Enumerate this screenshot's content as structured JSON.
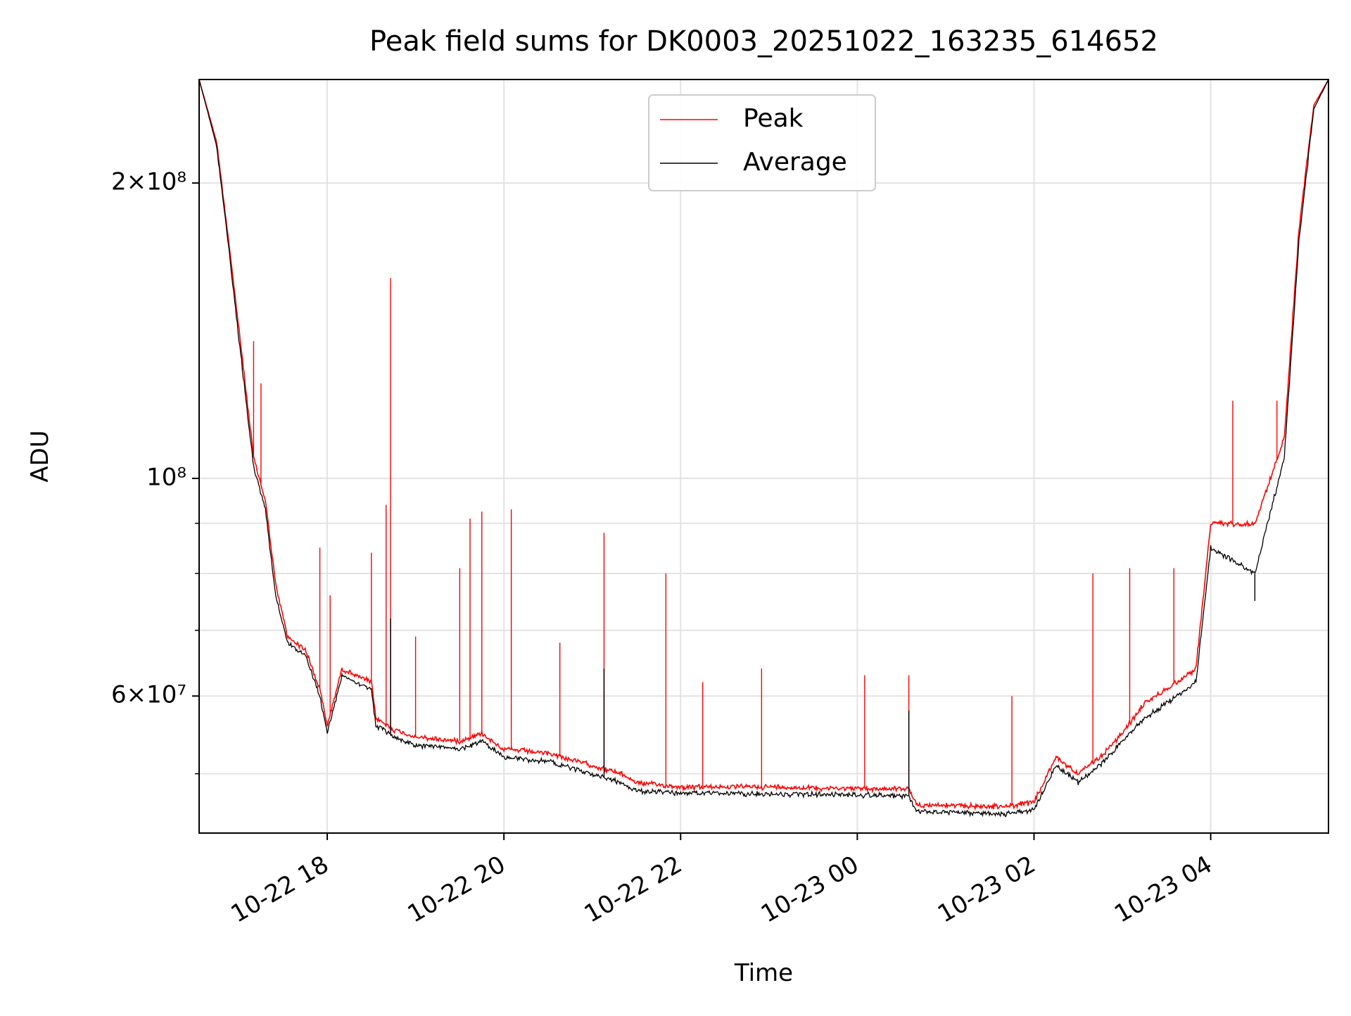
{
  "chart_data": {
    "type": "line",
    "title": "Peak field sums for DK0003_20251022_163235_614652",
    "xlabel": "Time",
    "ylabel": "ADU",
    "yscale": "log",
    "xlim": [
      "2025-10-22 16:33",
      "2025-10-23 05:20"
    ],
    "ylim": [
      43500000,
      255000000
    ],
    "x_ticks": [
      "10-22 18",
      "10-22 20",
      "10-22 22",
      "10-23 00",
      "10-23 02",
      "10-23 04"
    ],
    "y_ticks": [
      {
        "value": 200000000,
        "label": "2×10⁸"
      },
      {
        "value": 100000000,
        "label": "10⁸"
      },
      {
        "value": 60000000,
        "label": "6×10⁷"
      }
    ],
    "grid": true,
    "legend_position": "upper center",
    "series": [
      {
        "name": "Peak",
        "color": "#ff0000",
        "points": [
          [
            "2025-10-22 16:33",
            255000000
          ],
          [
            "2025-10-22 16:45",
            220000000
          ],
          [
            "2025-10-22 16:53",
            175000000
          ],
          [
            "2025-10-22 17:03",
            130000000
          ],
          [
            "2025-10-22 17:10",
            105000000
          ],
          [
            "2025-10-22 17:18",
            95000000
          ],
          [
            "2025-10-22 17:25",
            78000000
          ],
          [
            "2025-10-22 17:33",
            69000000
          ],
          [
            "2025-10-22 17:45",
            67000000
          ],
          [
            "2025-10-22 17:55",
            61000000
          ],
          [
            "2025-10-22 18:00",
            56000000
          ],
          [
            "2025-10-22 18:10",
            64000000
          ],
          [
            "2025-10-22 18:30",
            62000000
          ],
          [
            "2025-10-22 18:33",
            57000000
          ],
          [
            "2025-10-22 18:45",
            55500000
          ],
          [
            "2025-10-22 19:00",
            54500000
          ],
          [
            "2025-10-22 19:30",
            54000000
          ],
          [
            "2025-10-22 19:45",
            55000000
          ],
          [
            "2025-10-22 20:00",
            53000000
          ],
          [
            "2025-10-22 20:30",
            52500000
          ],
          [
            "2025-10-22 21:00",
            51000000
          ],
          [
            "2025-10-22 21:20",
            50000000
          ],
          [
            "2025-10-22 21:30",
            49000000
          ],
          [
            "2025-10-22 22:00",
            48500000
          ],
          [
            "2025-10-22 23:00",
            48500000
          ],
          [
            "2025-10-23 00:00",
            48300000
          ],
          [
            "2025-10-23 00:35",
            48300000
          ],
          [
            "2025-10-23 00:40",
            46500000
          ],
          [
            "2025-10-23 01:40",
            46300000
          ],
          [
            "2025-10-23 02:00",
            46800000
          ],
          [
            "2025-10-23 02:15",
            52000000
          ],
          [
            "2025-10-23 02:30",
            50000000
          ],
          [
            "2025-10-23 02:45",
            52000000
          ],
          [
            "2025-10-23 03:00",
            55000000
          ],
          [
            "2025-10-23 03:15",
            59000000
          ],
          [
            "2025-10-23 03:30",
            61000000
          ],
          [
            "2025-10-23 03:50",
            64000000
          ],
          [
            "2025-10-23 04:00",
            90000000
          ],
          [
            "2025-10-23 04:30",
            90000000
          ],
          [
            "2025-10-23 04:50",
            110000000
          ],
          [
            "2025-10-23 05:00",
            180000000
          ],
          [
            "2025-10-23 05:10",
            240000000
          ],
          [
            "2025-10-23 05:20",
            255000000
          ]
        ],
        "spikes": [
          [
            "2025-10-22 17:10",
            138000000
          ],
          [
            "2025-10-22 17:15",
            125000000
          ],
          [
            "2025-10-22 17:55",
            85000000
          ],
          [
            "2025-10-22 18:02",
            76000000
          ],
          [
            "2025-10-22 18:30",
            84000000
          ],
          [
            "2025-10-22 18:40",
            94000000
          ],
          [
            "2025-10-22 18:43",
            160000000
          ],
          [
            "2025-10-22 19:00",
            69000000
          ],
          [
            "2025-10-22 19:30",
            81000000
          ],
          [
            "2025-10-22 19:37",
            91000000
          ],
          [
            "2025-10-22 19:45",
            92500000
          ],
          [
            "2025-10-22 20:05",
            93000000
          ],
          [
            "2025-10-22 20:38",
            68000000
          ],
          [
            "2025-10-22 21:08",
            88000000
          ],
          [
            "2025-10-22 21:50",
            80000000
          ],
          [
            "2025-10-22 22:15",
            62000000
          ],
          [
            "2025-10-22 22:55",
            64000000
          ],
          [
            "2025-10-23 00:05",
            63000000
          ],
          [
            "2025-10-23 00:35",
            63000000
          ],
          [
            "2025-10-23 01:45",
            60000000
          ],
          [
            "2025-10-23 02:40",
            80000000
          ],
          [
            "2025-10-23 03:05",
            81000000
          ],
          [
            "2025-10-23 03:35",
            81000000
          ],
          [
            "2025-10-23 04:15",
            120000000
          ],
          [
            "2025-10-23 04:45",
            120000000
          ]
        ]
      },
      {
        "name": "Average",
        "color": "#000000",
        "points": [
          [
            "2025-10-22 16:33",
            255000000
          ],
          [
            "2025-10-22 16:45",
            218000000
          ],
          [
            "2025-10-22 16:53",
            172000000
          ],
          [
            "2025-10-22 17:03",
            127000000
          ],
          [
            "2025-10-22 17:10",
            103000000
          ],
          [
            "2025-10-22 17:18",
            93000000
          ],
          [
            "2025-10-22 17:25",
            76000000
          ],
          [
            "2025-10-22 17:33",
            68000000
          ],
          [
            "2025-10-22 17:45",
            66000000
          ],
          [
            "2025-10-22 17:55",
            60000000
          ],
          [
            "2025-10-22 18:00",
            55000000
          ],
          [
            "2025-10-22 18:10",
            63000000
          ],
          [
            "2025-10-22 18:30",
            61000000
          ],
          [
            "2025-10-22 18:33",
            56000000
          ],
          [
            "2025-10-22 18:45",
            54500000
          ],
          [
            "2025-10-22 19:00",
            53500000
          ],
          [
            "2025-10-22 19:30",
            53000000
          ],
          [
            "2025-10-22 19:45",
            54000000
          ],
          [
            "2025-10-22 20:00",
            52000000
          ],
          [
            "2025-10-22 20:30",
            51500000
          ],
          [
            "2025-10-22 21:00",
            50000000
          ],
          [
            "2025-10-22 21:20",
            49000000
          ],
          [
            "2025-10-22 21:30",
            48000000
          ],
          [
            "2025-10-22 22:00",
            47800000
          ],
          [
            "2025-10-22 23:00",
            47700000
          ],
          [
            "2025-10-23 00:00",
            47600000
          ],
          [
            "2025-10-23 00:35",
            47500000
          ],
          [
            "2025-10-23 00:40",
            45800000
          ],
          [
            "2025-10-23 01:40",
            45500000
          ],
          [
            "2025-10-23 02:00",
            46000000
          ],
          [
            "2025-10-23 02:15",
            51000000
          ],
          [
            "2025-10-23 02:30",
            49000000
          ],
          [
            "2025-10-23 02:45",
            51000000
          ],
          [
            "2025-10-23 03:00",
            54000000
          ],
          [
            "2025-10-23 03:15",
            57000000
          ],
          [
            "2025-10-23 03:30",
            59000000
          ],
          [
            "2025-10-23 03:50",
            62000000
          ],
          [
            "2025-10-23 04:00",
            85000000
          ],
          [
            "2025-10-23 04:30",
            80000000
          ],
          [
            "2025-10-23 04:50",
            105000000
          ],
          [
            "2025-10-23 05:00",
            175000000
          ],
          [
            "2025-10-23 05:10",
            238000000
          ],
          [
            "2025-10-23 05:20",
            255000000
          ]
        ],
        "spikes": [
          [
            "2025-10-22 18:43",
            72000000
          ],
          [
            "2025-10-22 21:08",
            64000000
          ],
          [
            "2025-10-23 00:35",
            58000000
          ],
          [
            "2025-10-23 04:30",
            75000000
          ]
        ]
      }
    ]
  }
}
